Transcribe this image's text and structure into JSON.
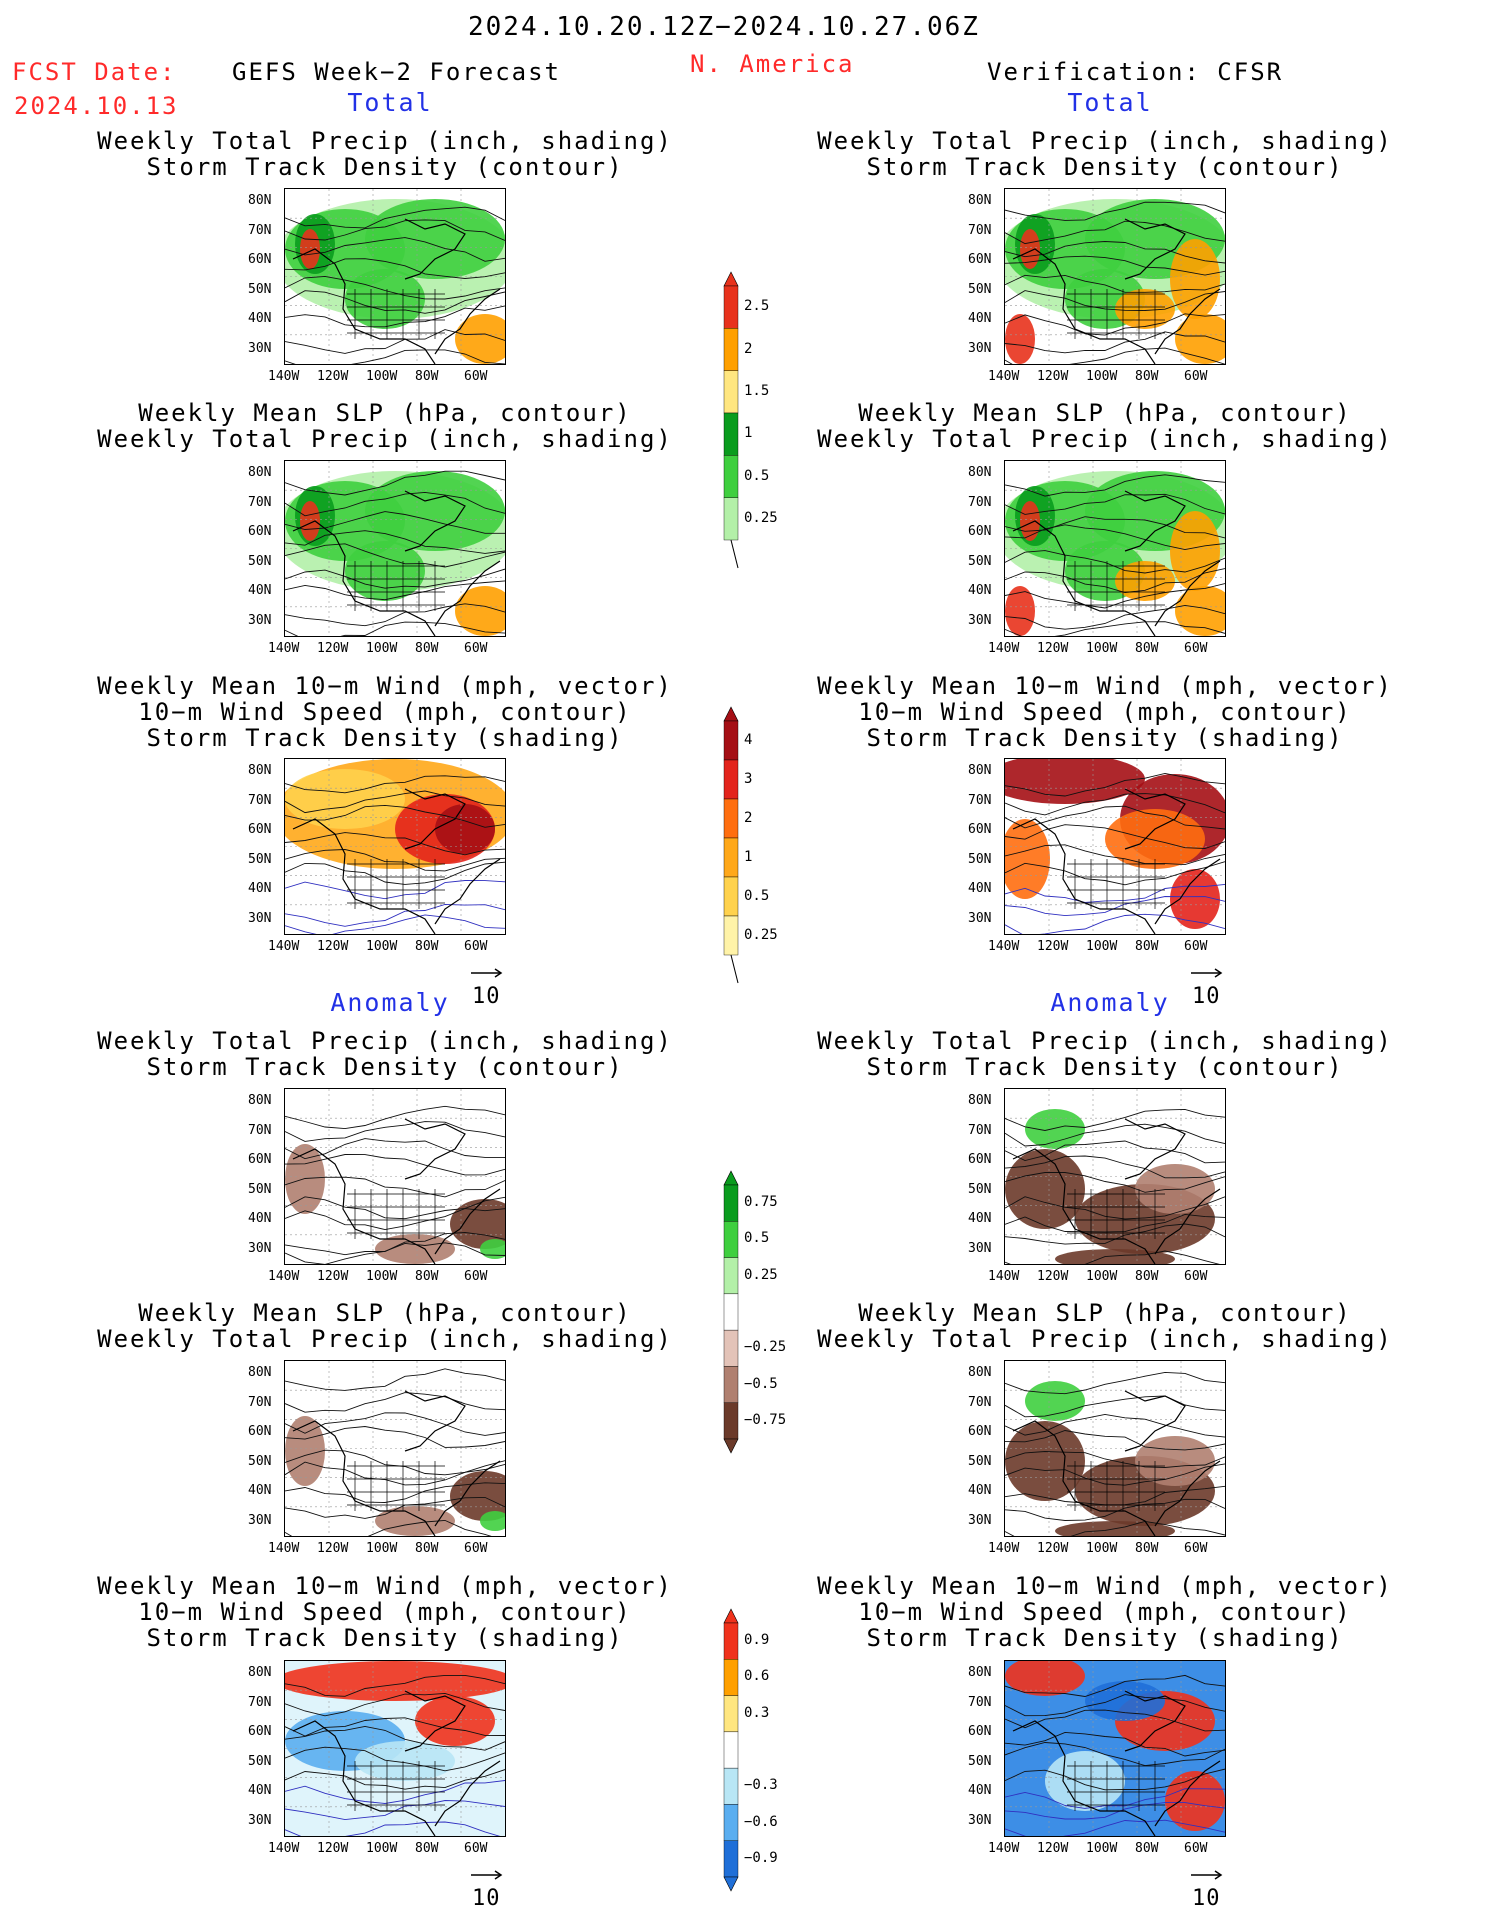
{
  "header": {
    "period": "2024.10.20.12Z−2024.10.27.06Z",
    "fcst_date_label": "FCST Date:",
    "fcst_date_value": "2024.10.13",
    "forecast_title": "GEFS Week−2 Forecast",
    "region": "N. America",
    "verification": "Verification: CFSR"
  },
  "sections": {
    "total": "Total",
    "anomaly": "Anomaly"
  },
  "titles": {
    "precip_storm": [
      "Weekly Total Precip (inch, shading)",
      "Storm Track Density (contour)"
    ],
    "slp_precip": [
      "Weekly Mean SLP (hPa, contour)",
      "Weekly Total Precip (inch, shading)"
    ],
    "wind_storm": [
      "Weekly Mean 10−m Wind (mph, vector)",
      "10−m Wind Speed (mph, contour)",
      "Storm Track Density (shading)"
    ]
  },
  "axes": {
    "lat_labels": [
      "80N",
      "70N",
      "60N",
      "50N",
      "40N",
      "30N"
    ],
    "lon_labels": [
      "140W",
      "120W",
      "100W",
      "80W",
      "60W"
    ],
    "vector_scale": "10"
  },
  "colorbars": {
    "total_precip": {
      "labels": [
        "2.5",
        "2",
        "1.5",
        "1",
        "0.5",
        "0.25"
      ],
      "colors": [
        "#e8321c",
        "#ffa000",
        "#ffe680",
        "#0a9c1e",
        "#3fcf3f",
        "#b3f0a8"
      ]
    },
    "total_storm": {
      "labels": [
        "4",
        "3",
        "2",
        "1",
        "0.5",
        "0.25"
      ],
      "colors": [
        "#a50f15",
        "#e3241c",
        "#ff6e0f",
        "#ffa81a",
        "#ffd24d",
        "#fff3a8"
      ]
    },
    "anom_precip": {
      "labels": [
        "0.75",
        "0.5",
        "0.25",
        "−0.25",
        "−0.5",
        "−0.75"
      ],
      "colors": [
        "#0a9c1e",
        "#3fcf3f",
        "#b3f0a8",
        "#ffffff",
        "#e3c3b8",
        "#b08070",
        "#6b3a2a"
      ]
    },
    "anom_storm": {
      "labels": [
        "0.9",
        "0.6",
        "0.3",
        "−0.3",
        "−0.6",
        "−0.9"
      ],
      "colors": [
        "#f0321c",
        "#ffa000",
        "#ffe680",
        "#ffffff",
        "#b8e6f5",
        "#5aaef0",
        "#1f6fd8"
      ]
    }
  },
  "colors": {
    "title_red": "#ff2a2a",
    "section_blue": "#2231e6"
  }
}
